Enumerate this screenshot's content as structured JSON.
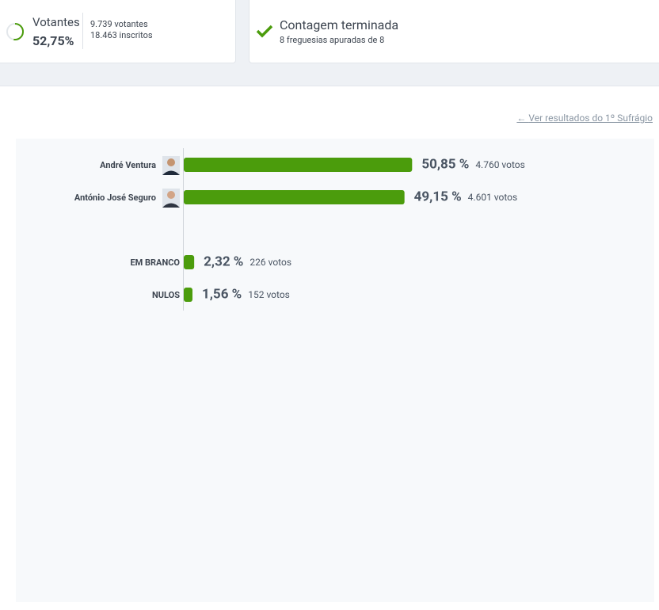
{
  "header": {
    "votantes_label": "Votantes",
    "votantes_pct": "52,75%",
    "votantes": "9.739 votantes",
    "inscritos": "18.463 inscritos",
    "status_title": "Contagem terminada",
    "status_detail": "8 freguesias apuradas de 8"
  },
  "link": "Ver resultados do 1º Sufrágio",
  "chart_data": {
    "type": "bar",
    "orientation": "horizontal",
    "categories": [
      "André Ventura",
      "António José Seguro",
      "EM BRANCO",
      "NULOS"
    ],
    "values": [
      50.85,
      49.15,
      2.32,
      1.56
    ],
    "value_labels": [
      "50,85 %",
      "49,15 %",
      "2,32 %",
      "1,56 %"
    ],
    "vote_labels": [
      "4.760 votos",
      "4.601 votos",
      "226 votos",
      "152 votos"
    ],
    "color": "#4b9c0c"
  }
}
